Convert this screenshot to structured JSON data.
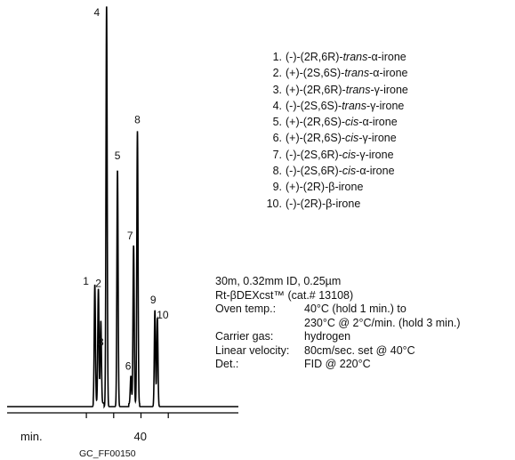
{
  "chart_data": {
    "type": "line",
    "title": "",
    "xlabel": "min.",
    "x_ticks": [
      "40"
    ],
    "image_code": "GC_FF00150",
    "peaks": [
      {
        "label": "1",
        "t": 23.1,
        "h": 0.295
      },
      {
        "label": "2",
        "t": 24.4,
        "h": 0.285
      },
      {
        "label": "3",
        "t": 25.3,
        "h": 0.205
      },
      {
        "label": "4",
        "t": 27.4,
        "h": 1.0
      },
      {
        "label": "5",
        "t": 31.4,
        "h": 0.59
      },
      {
        "label": "6",
        "t": 36.3,
        "h": 0.07
      },
      {
        "label": "7",
        "t": 37.3,
        "h": 0.395
      },
      {
        "label": "8",
        "t": 38.7,
        "h": 0.68
      },
      {
        "label": "9",
        "t": 45.1,
        "h": 0.24
      },
      {
        "label": "10",
        "t": 46.0,
        "h": 0.22
      }
    ]
  },
  "legend": [
    {
      "num": "1.",
      "text": "(-)-(2R,6R)-trans-α-irone"
    },
    {
      "num": "2.",
      "text": "(+)-(2S,6S)-trans-α-irone"
    },
    {
      "num": "3.",
      "text": "(+)-(2R,6R)-trans-γ-irone"
    },
    {
      "num": "4.",
      "text": "(-)-(2S,6S)-trans-γ-irone"
    },
    {
      "num": "5.",
      "text": "(+)-(2R,6S)-cis-α-irone"
    },
    {
      "num": "6.",
      "text": "(+)-(2R,6S)-cis-γ-irone"
    },
    {
      "num": "7.",
      "text": "(-)-(2S,6R)-cis-γ-irone"
    },
    {
      "num": "8.",
      "text": "(-)-(2S,6R)-cis-α-irone"
    },
    {
      "num": "9.",
      "text": "(+)-(2R)-β-irone"
    },
    {
      "num": "10.",
      "text": "(-)-(2R)-β-irone"
    }
  ],
  "column": {
    "dimensions": "30m, 0.32mm ID, 0.25µm",
    "phase": "Rt-βDEXcst™ (cat.# 13108)"
  },
  "params": {
    "oven_label": "Oven temp.:",
    "oven_value_1": "40°C (hold 1 min.) to",
    "oven_value_2": "230°C @ 2°C/min. (hold 3 min.)",
    "carrier_label": "Carrier gas:",
    "carrier_value": "hydrogen",
    "velocity_label": "Linear velocity:",
    "velocity_value": "80cm/sec. set @ 40°C",
    "det_label": "Det.:",
    "det_value": "FID @ 220°C"
  }
}
